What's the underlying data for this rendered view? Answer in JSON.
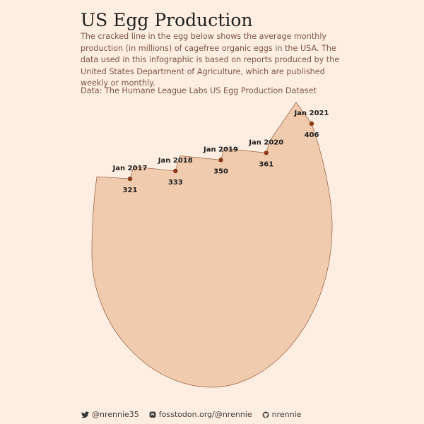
{
  "title": "US Egg Production",
  "subtitle": "The cracked line in the egg below shows the average monthly production (in millions) of cagefree organic eggs in the USA. The data used in this infographic is based on reports produced by the United States Department of Agriculture, which are published weekly or monthly.",
  "source": "Data: The Humane League Labs US Egg Production Dataset",
  "caption": {
    "twitter": "@nrennie35",
    "mastodon": "fosstodon.org/@nrennie",
    "github": "nrennie"
  },
  "colors": {
    "background": "#fdeee1",
    "egg_fill": "#f0cbad",
    "egg_stroke": "#a0684e",
    "point": "#8b3a17",
    "label": "#1e1e1e"
  },
  "chart_data": {
    "type": "line",
    "x": [
      "Jan 2017",
      "Jan 2018",
      "Jan 2019",
      "Jan 2020",
      "Jan 2021"
    ],
    "values": [
      321,
      333,
      350,
      361,
      406
    ],
    "title": "US Egg Production",
    "xlabel": "",
    "ylabel": "",
    "grid": false,
    "legend": "none"
  }
}
